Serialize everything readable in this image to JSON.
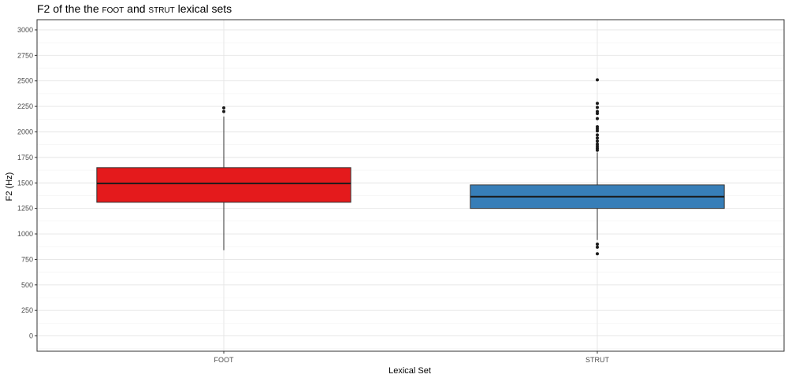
{
  "chart_data": {
    "type": "boxplot",
    "title_parts": [
      "F2 of the the ",
      "foot",
      " and ",
      "strut",
      " lexical sets"
    ],
    "xlabel": "Lexical Set",
    "ylabel": "F2 (Hz)",
    "ylim": [
      -150,
      3100
    ],
    "yticks": [
      0,
      250,
      500,
      750,
      1000,
      1250,
      1500,
      1750,
      2000,
      2250,
      2500,
      2750,
      3000
    ],
    "ytick_labels": [
      "0",
      "250",
      "500",
      "750",
      "1000",
      "1250",
      "1500",
      "1750",
      "2000",
      "2250",
      "2500",
      "2750",
      "3000"
    ],
    "grid": true,
    "categories": [
      "FOOT",
      "STRUT"
    ],
    "boxes": [
      {
        "category": "FOOT",
        "color": "#E41A1C",
        "whisker_low": 840,
        "q1": 1310,
        "median": 1495,
        "q3": 1650,
        "whisker_high": 2150,
        "outliers": [
          2200,
          2235
        ]
      },
      {
        "category": "STRUT",
        "color": "#377EB8",
        "whisker_low": 940,
        "q1": 1250,
        "median": 1365,
        "q3": 1480,
        "whisker_high": 1800,
        "outliers": [
          805,
          870,
          900,
          1820,
          1840,
          1860,
          1880,
          1910,
          1940,
          1970,
          2010,
          2030,
          2050,
          2130,
          2180,
          2200,
          2240,
          2280,
          2510
        ]
      }
    ]
  }
}
